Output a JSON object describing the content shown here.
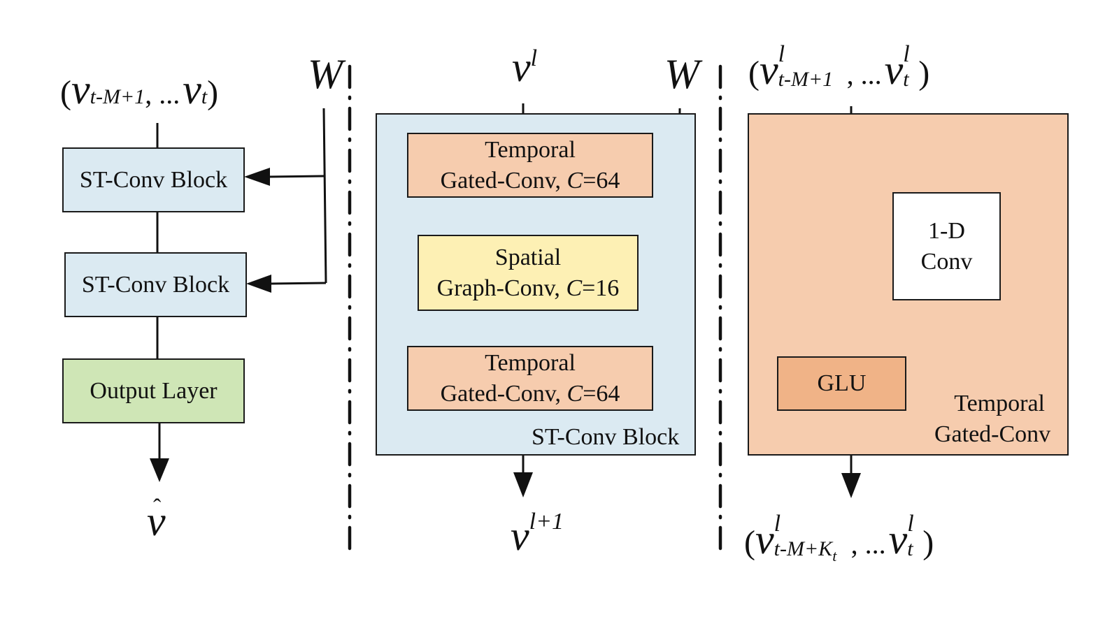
{
  "panel_left": {
    "input_label": {
      "open": "(",
      "v1": "v",
      "sub1": "t-M+1",
      "ellipsis": ", ...",
      "v2": "v",
      "sub2": "t",
      "close": ")"
    },
    "weight_label": "W",
    "blocks": [
      "ST-Conv Block",
      "ST-Conv Block"
    ],
    "output_layer": "Output Layer",
    "output_hat": "ˆ",
    "output_label": "v"
  },
  "panel_middle": {
    "input_v": "v",
    "input_sup": "l",
    "weight_label": "W",
    "temporal_top": {
      "line1": "Temporal",
      "line2_text": "Gated-Conv, ",
      "line2_c": "C",
      "line2_val": "=64"
    },
    "spatial": {
      "line1": "Spatial",
      "line2_text": "Graph-Conv, ",
      "line2_c": "C",
      "line2_val": "=16"
    },
    "temporal_bottom": {
      "line1": "Temporal",
      "line2_text": "Gated-Conv, ",
      "line2_c": "C",
      "line2_val": "=64"
    },
    "block_caption": "ST-Conv Block",
    "output_v": "v",
    "output_sup": "l+1"
  },
  "panel_right": {
    "input_label": {
      "open": "(",
      "v1": "v",
      "sup1": "l",
      "sub1": "t-M+1",
      "ellipsis": ", ...",
      "v2": "v",
      "sup2": "l",
      "sub2": "t",
      "close": ")"
    },
    "conv_box": {
      "line1": "1-D",
      "line2": "Conv"
    },
    "glu": "GLU",
    "caption": {
      "line1": "Temporal",
      "line2": "Gated-Conv"
    },
    "output_label": {
      "open": "(",
      "v1": "v",
      "sup1": "l",
      "sub1": "t-M+K",
      "sub1_sub": "t",
      "ellipsis": ", ...",
      "v2": "v",
      "sup2": "l",
      "sub2": "t",
      "close": ")"
    }
  }
}
